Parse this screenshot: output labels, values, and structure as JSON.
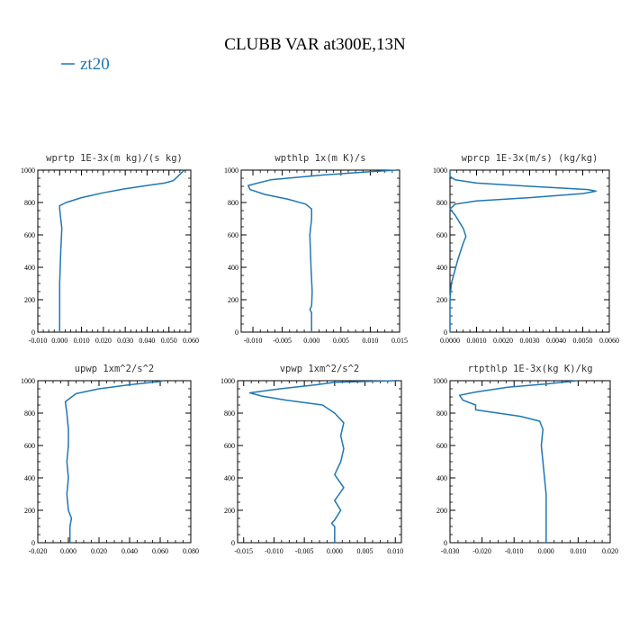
{
  "figure": {
    "title": "CLUBB VAR at300E,13N",
    "legend": {
      "label": "zt20",
      "color": "#1f77b4",
      "placement": "top-left"
    }
  },
  "chart_data": [
    {
      "type": "line",
      "title": "wprtp  1E-3x(m kg)/(s kg)",
      "xlim": [
        -0.01,
        0.06
      ],
      "ylim": [
        1000,
        0
      ],
      "xticks": [
        "-0.010",
        "0.000",
        "0.010",
        "0.020",
        "0.030",
        "0.040",
        "0.050",
        "0.060"
      ],
      "yticks": [
        "0",
        "200",
        "400",
        "600",
        "800",
        "1000"
      ],
      "series": [
        {
          "name": "zt20",
          "color": "#1f77b4",
          "points": [
            [
              0.0,
              0
            ],
            [
              0.0,
              100
            ],
            [
              0.0,
              300
            ],
            [
              0.0005,
              500
            ],
            [
              0.001,
              640
            ],
            [
              0.0,
              760
            ],
            [
              0.0,
              780
            ],
            [
              0.003,
              800
            ],
            [
              0.01,
              830
            ],
            [
              0.02,
              860
            ],
            [
              0.03,
              885
            ],
            [
              0.04,
              905
            ],
            [
              0.048,
              920
            ],
            [
              0.052,
              935
            ],
            [
              0.054,
              960
            ],
            [
              0.057,
              1000
            ]
          ]
        }
      ]
    },
    {
      "type": "line",
      "title": "wpthlp  1x(m K)/s",
      "xlim": [
        -0.012,
        0.015
      ],
      "ylim": [
        1000,
        0
      ],
      "xticks": [
        "-0.010",
        "-0.005",
        "0.000",
        "0.005",
        "0.010",
        "0.015"
      ],
      "yticks": [
        "0",
        "200",
        "400",
        "600",
        "800",
        "1000"
      ],
      "series": [
        {
          "name": "zt20",
          "color": "#1f77b4",
          "points": [
            [
              0.0,
              0
            ],
            [
              0.0,
              120
            ],
            [
              -0.0003,
              140
            ],
            [
              0.0,
              160
            ],
            [
              0.0001,
              250
            ],
            [
              -0.0001,
              400
            ],
            [
              -0.0003,
              600
            ],
            [
              0.0,
              700
            ],
            [
              0.0,
              760
            ],
            [
              -0.001,
              790
            ],
            [
              -0.004,
              820
            ],
            [
              -0.008,
              850
            ],
            [
              -0.0105,
              880
            ],
            [
              -0.0108,
              905
            ],
            [
              -0.007,
              940
            ],
            [
              0.002,
              970
            ],
            [
              0.01,
              990
            ],
            [
              0.0145,
              1000
            ]
          ]
        }
      ]
    },
    {
      "type": "line",
      "title": "wprcp  1E-3x(m/s) (kg/kg)",
      "xlim": [
        0.0,
        0.006
      ],
      "ylim": [
        1000,
        0
      ],
      "xticks": [
        "0.0000",
        "0.0010",
        "0.0020",
        "0.0030",
        "0.0040",
        "0.0050",
        "0.0060"
      ],
      "yticks": [
        "0",
        "200",
        "400",
        "600",
        "800",
        "1000"
      ],
      "series": [
        {
          "name": "zt20",
          "color": "#1f77b4",
          "points": [
            [
              0.0,
              0
            ],
            [
              0.0,
              200
            ],
            [
              5e-05,
              300
            ],
            [
              0.0003,
              450
            ],
            [
              0.0005,
              550
            ],
            [
              0.0006,
              590
            ],
            [
              0.0005,
              640
            ],
            [
              0.0002,
              720
            ],
            [
              0.0,
              760
            ],
            [
              0.0002,
              790
            ],
            [
              0.001,
              810
            ],
            [
              0.003,
              830
            ],
            [
              0.005,
              855
            ],
            [
              0.0055,
              870
            ],
            [
              0.0052,
              880
            ],
            [
              0.003,
              900
            ],
            [
              0.001,
              920
            ],
            [
              0.0002,
              940
            ],
            [
              0.0,
              960
            ],
            [
              0.0,
              1000
            ]
          ]
        }
      ]
    },
    {
      "type": "line",
      "title": "upwp  1xm^2/s^2",
      "xlim": [
        -0.02,
        0.08
      ],
      "ylim": [
        1000,
        0
      ],
      "xticks": [
        "-0.020",
        "0.000",
        "0.020",
        "0.040",
        "0.060",
        "0.080"
      ],
      "yticks": [
        "0",
        "200",
        "400",
        "600",
        "800",
        "1000"
      ],
      "series": [
        {
          "name": "zt20",
          "color": "#1f77b4",
          "points": [
            [
              0.001,
              0
            ],
            [
              0.001,
              100
            ],
            [
              0.002,
              150
            ],
            [
              0.0,
              200
            ],
            [
              -0.001,
              300
            ],
            [
              0.0,
              400
            ],
            [
              -0.001,
              500
            ],
            [
              0.0,
              600
            ],
            [
              0.0,
              700
            ],
            [
              -0.001,
              800
            ],
            [
              -0.002,
              870
            ],
            [
              0.005,
              920
            ],
            [
              0.02,
              950
            ],
            [
              0.04,
              975
            ],
            [
              0.06,
              995
            ],
            [
              0.062,
              1000
            ]
          ]
        }
      ]
    },
    {
      "type": "line",
      "title": "vpwp  1xm^2/s^2",
      "xlim": [
        -0.016,
        0.011
      ],
      "ylim": [
        1000,
        0
      ],
      "xticks": [
        "-0.015",
        "-0.010",
        "-0.005",
        "0.000",
        "0.005",
        "0.010"
      ],
      "yticks": [
        "0",
        "200",
        "400",
        "600",
        "800",
        "1000"
      ],
      "series": [
        {
          "name": "zt20",
          "color": "#1f77b4",
          "points": [
            [
              0.0,
              0
            ],
            [
              0.0,
              100
            ],
            [
              -0.0005,
              120
            ],
            [
              0.0,
              140
            ],
            [
              0.001,
              200
            ],
            [
              0.0,
              260
            ],
            [
              0.0015,
              340
            ],
            [
              0.0,
              420
            ],
            [
              0.001,
              500
            ],
            [
              0.0015,
              580
            ],
            [
              0.001,
              660
            ],
            [
              0.0015,
              740
            ],
            [
              0.0,
              800
            ],
            [
              -0.002,
              850
            ],
            [
              -0.008,
              880
            ],
            [
              -0.012,
              905
            ],
            [
              -0.014,
              925
            ],
            [
              -0.009,
              950
            ],
            [
              -0.003,
              975
            ],
            [
              0.0,
              990
            ],
            [
              0.01,
              1000
            ]
          ]
        }
      ]
    },
    {
      "type": "line",
      "title": "rtpthlp  1E-3x(kg K)/kg",
      "xlim": [
        -0.03,
        0.02
      ],
      "ylim": [
        1000,
        0
      ],
      "xticks": [
        "-0.030",
        "-0.020",
        "-0.010",
        "0.000",
        "0.010",
        "0.020"
      ],
      "yticks": [
        "0",
        "200",
        "400",
        "600",
        "800",
        "1000"
      ],
      "series": [
        {
          "name": "zt20",
          "color": "#1f77b4",
          "points": [
            [
              0.0,
              0
            ],
            [
              0.0,
              300
            ],
            [
              -0.001,
              500
            ],
            [
              -0.0015,
              600
            ],
            [
              -0.001,
              700
            ],
            [
              -0.002,
              750
            ],
            [
              -0.008,
              780
            ],
            [
              -0.015,
              800
            ],
            [
              -0.022,
              820
            ],
            [
              -0.022,
              850
            ],
            [
              -0.026,
              880
            ],
            [
              -0.027,
              910
            ],
            [
              -0.022,
              930
            ],
            [
              -0.012,
              960
            ],
            [
              0.0,
              980
            ],
            [
              0.01,
              1000
            ]
          ]
        }
      ]
    }
  ]
}
